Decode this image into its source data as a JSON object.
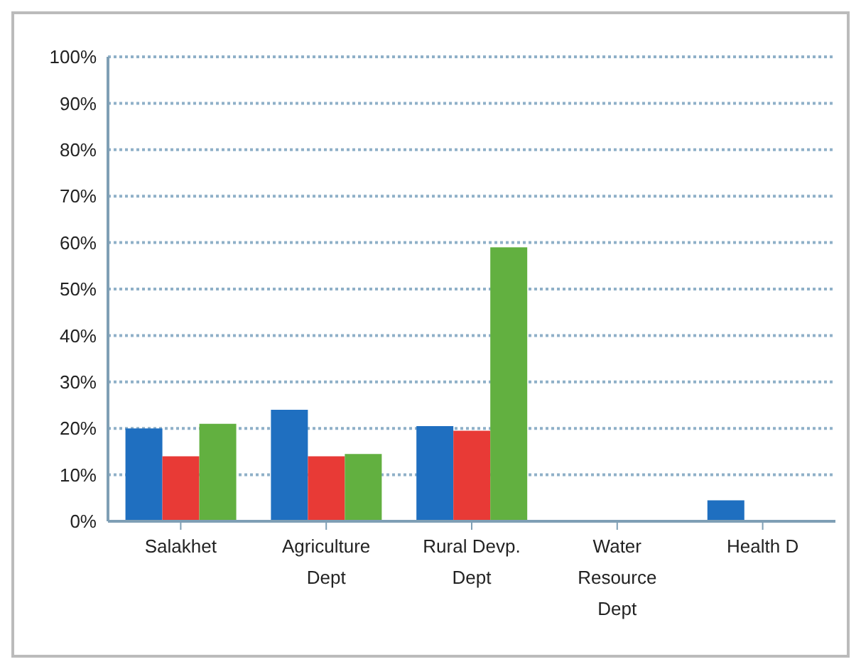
{
  "chart_data": {
    "type": "bar",
    "categories": [
      "Salakhet",
      "Agriculture Dept",
      "Rural Devp. Dept",
      "Water Resource Dept",
      "Health D"
    ],
    "series": [
      {
        "color": "#1f6fc0",
        "values": [
          20,
          24,
          20.5,
          0.3,
          4.5
        ]
      },
      {
        "color": "#e83a36",
        "values": [
          14,
          14,
          19.5,
          null,
          null
        ]
      },
      {
        "color": "#62b040",
        "values": [
          21,
          14.5,
          59,
          null,
          null
        ]
      }
    ],
    "ylim": [
      0,
      100
    ],
    "yticks": [
      {
        "value": 0,
        "label": "0%"
      },
      {
        "value": 10,
        "label": "10%"
      },
      {
        "value": 20,
        "label": "20%"
      },
      {
        "value": 30,
        "label": "30%"
      },
      {
        "value": 40,
        "label": "40%"
      },
      {
        "value": 50,
        "label": "50%"
      },
      {
        "value": 60,
        "label": "60%"
      },
      {
        "value": 70,
        "label": "70%"
      },
      {
        "value": 80,
        "label": "80%"
      },
      {
        "value": 90,
        "label": "90%"
      },
      {
        "value": 100,
        "label": "100%"
      }
    ],
    "grid": "y"
  }
}
